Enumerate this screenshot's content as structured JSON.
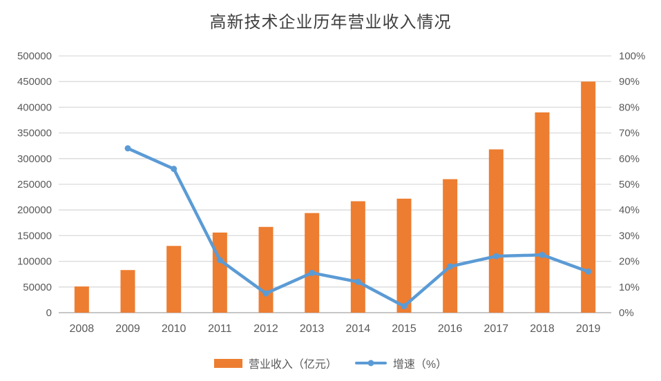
{
  "colors": {
    "bar": "#ED7D31",
    "line": "#5B9BD5",
    "grid": "#D9D9D9",
    "axis_line": "#C6C6C6",
    "tick_text": "#595959",
    "title_text": "#404040",
    "background": "#FFFFFF"
  },
  "chart_data": {
    "type": "bar",
    "subtype": "combo-bar-line-dual-axis",
    "title": "高新技术企业历年营业收入情况",
    "categories": [
      "2008",
      "2009",
      "2010",
      "2011",
      "2012",
      "2013",
      "2014",
      "2015",
      "2016",
      "2017",
      "2018",
      "2019"
    ],
    "series": [
      {
        "name": "营业收入（亿元）",
        "type": "bar",
        "axis": "left",
        "color": "#ED7D31",
        "values": [
          51000,
          83000,
          130000,
          156000,
          167000,
          194000,
          217000,
          222000,
          260000,
          318000,
          390000,
          450000
        ]
      },
      {
        "name": "增速（%）",
        "type": "line",
        "axis": "right",
        "color": "#5B9BD5",
        "values": [
          null,
          64,
          56,
          20.5,
          7.5,
          15.5,
          12,
          2.5,
          18,
          22,
          22.5,
          16
        ]
      }
    ],
    "left_axis": {
      "min": 0,
      "max": 500000,
      "step": 50000,
      "ticks": [
        "0",
        "50000",
        "100000",
        "150000",
        "200000",
        "250000",
        "300000",
        "350000",
        "400000",
        "450000",
        "500000"
      ]
    },
    "right_axis": {
      "min": 0,
      "max": 100,
      "step": 10,
      "ticks": [
        "0%",
        "10%",
        "20%",
        "30%",
        "40%",
        "50%",
        "60%",
        "70%",
        "80%",
        "90%",
        "100%"
      ]
    },
    "grid": true,
    "legend_position": "bottom"
  }
}
